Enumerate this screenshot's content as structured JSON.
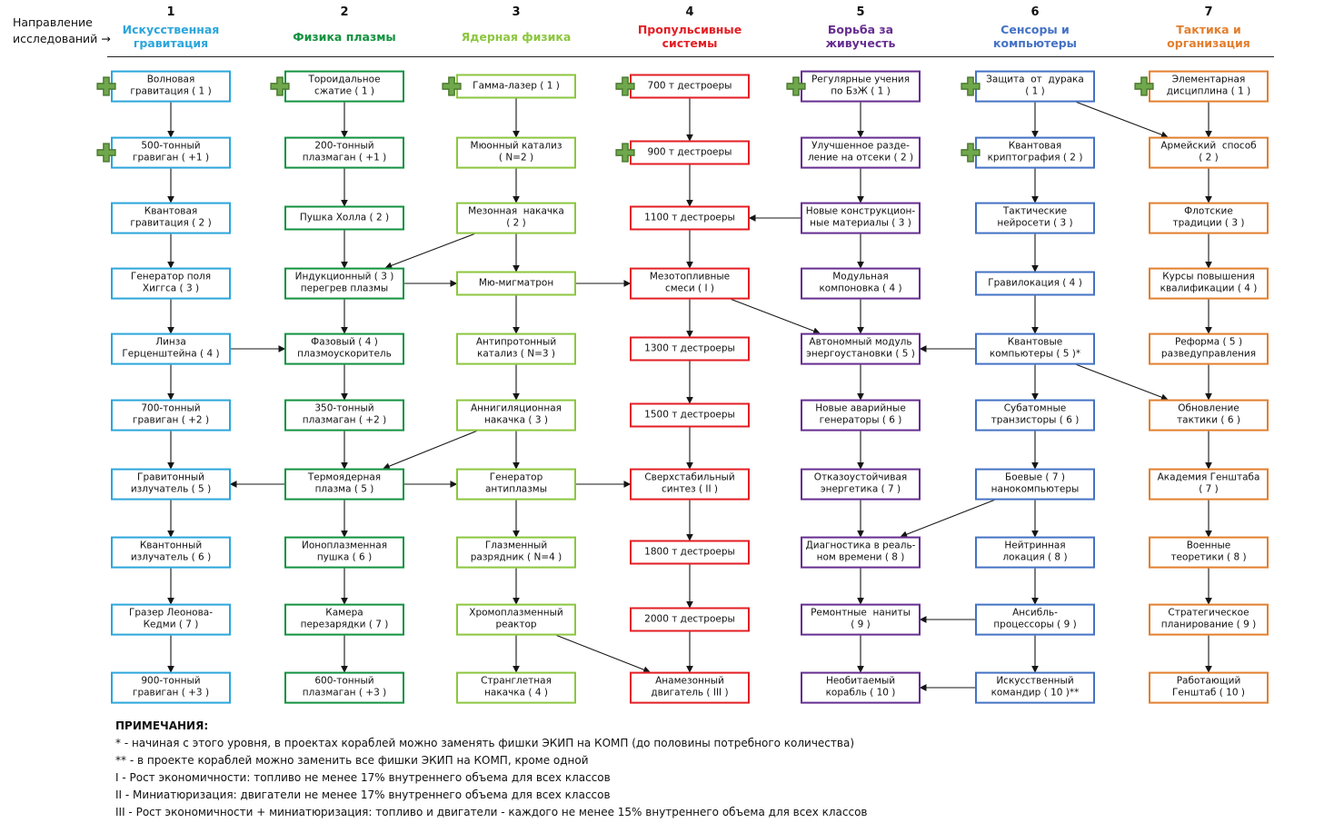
{
  "corner": {
    "line1": "Направление",
    "line2": "исследований →"
  },
  "columns": [
    {
      "number": "1",
      "title": "Искусственная\nгравитация",
      "color": "#2BA6DB",
      "items": [
        {
          "label": "Волновая\nгравитация ( 1 )",
          "plus": true
        },
        {
          "label": "500-тонный\nгравиган ( +1 )",
          "plus": true
        },
        {
          "label": "Квантовая\nгравитация ( 2 )"
        },
        {
          "label": "Генератор поля\nХиггса ( 3 )"
        },
        {
          "label": "Линза\nГерценштейна ( 4 )"
        },
        {
          "label": "700-тонный\nгравиган ( +2 )"
        },
        {
          "label": "Гравитонный\nизлучатель ( 5 )"
        },
        {
          "label": "Квантонный\nизлучатель ( 6 )"
        },
        {
          "label": "Гразер Леонова-\nКедми ( 7 )"
        },
        {
          "label": "900-тонный\nгравиган ( +3 )"
        }
      ]
    },
    {
      "number": "2",
      "title": "Физика плазмы",
      "color": "#12923F",
      "items": [
        {
          "label": "Тороидальное\nсжатие ( 1 )",
          "plus": true
        },
        {
          "label": "200-тонный\nплазмаган ( +1 )"
        },
        {
          "label": "Пушка Холла ( 2 )"
        },
        {
          "label": "Индукционный ( 3 )\nперегрев плазмы"
        },
        {
          "label": "Фазовый ( 4 )\nплазмоускоритель"
        },
        {
          "label": "350-тонный\nплазмаган ( +2 )"
        },
        {
          "label": "Термоядерная\nплазма ( 5 )"
        },
        {
          "label": "Ионоплазменная\nпушка ( 6 )"
        },
        {
          "label": "Камера\nперезарядки ( 7 )"
        },
        {
          "label": "600-тонный\nплазмаган ( +3 )"
        }
      ]
    },
    {
      "number": "3",
      "title": "Ядерная физика",
      "color": "#8CC63F",
      "items": [
        {
          "label": "Гамма-лазер ( 1 )",
          "plus": true
        },
        {
          "label": "Мюонный катализ\n( N=2 )"
        },
        {
          "label": "Мезонная  накачка\n( 2 )"
        },
        {
          "label": "Мю-мигматрон"
        },
        {
          "label": "Антипротонный\nкатализ ( N=3 )"
        },
        {
          "label": "Аннигиляционная\nнакачка ( 3 )"
        },
        {
          "label": "Генератор\nантиплазмы"
        },
        {
          "label": "Глазменный\nразрядник ( N=4 )"
        },
        {
          "label": "Хромоплазменный\nреактор"
        },
        {
          "label": "Странглетная\nнакачка ( 4 )"
        }
      ]
    },
    {
      "number": "4",
      "title": "Пропульсивные\nсистемы",
      "color": "#E31E24",
      "items": [
        {
          "label": "700 т дестроеры",
          "plus": true
        },
        {
          "label": "900 т дестроеры",
          "plus": true
        },
        {
          "label": "1100 т дестроеры"
        },
        {
          "label": "Мезотопливные\nсмеси ( I )"
        },
        {
          "label": "1300 т дестроеры"
        },
        {
          "label": "1500 т дестроеры"
        },
        {
          "label": "Сверхстабильный\nсинтез ( II )"
        },
        {
          "label": "1800 т дестроеры"
        },
        {
          "label": "2000 т дестроеры"
        },
        {
          "label": "Анамезонный\nдвигатель ( III )"
        }
      ]
    },
    {
      "number": "5",
      "title": "Борьба за\nживучесть",
      "color": "#662D91",
      "items": [
        {
          "label": "Регулярные учения\nпо БзЖ ( 1 )",
          "plus": true
        },
        {
          "label": "Улучшенное разде-\nление на отсеки ( 2 )"
        },
        {
          "label": "Новые конструкцион-\nные материалы ( 3 )"
        },
        {
          "label": "Модульная\nкомпоновка ( 4 )"
        },
        {
          "label": "Автономный модуль\nэнергоустановки ( 5 )"
        },
        {
          "label": "Новые аварийные\nгенераторы ( 6 )"
        },
        {
          "label": "Отказоустойчивая\nэнергетика ( 7 )"
        },
        {
          "label": "Диагностика в реаль-\nном времени ( 8 )"
        },
        {
          "label": "Ремонтные  наниты\n( 9 )"
        },
        {
          "label": "Необитаемый\nкорабль ( 10 )"
        }
      ]
    },
    {
      "number": "6",
      "title": "Сенсоры и\nкомпьютеры",
      "color": "#4472C4",
      "items": [
        {
          "label": "Защита  от  дурака\n( 1 )",
          "plus": true
        },
        {
          "label": "Квантовая\nкриптография ( 2 )",
          "plus": true
        },
        {
          "label": "Тактические\nнейросети ( 3 )"
        },
        {
          "label": "Гравилокация ( 4 )"
        },
        {
          "label": "Квантовые\nкомпьютеры ( 5 )*"
        },
        {
          "label": "Субатомные\nтранзисторы ( 6 )"
        },
        {
          "label": "Боевые ( 7 )\nнанокомпьютеры"
        },
        {
          "label": "Нейтринная\nлокация ( 8 )"
        },
        {
          "label": "Ансибль-\nпроцессоры ( 9 )"
        },
        {
          "label": "Искусственный\nкомандир ( 10 )**"
        }
      ]
    },
    {
      "number": "7",
      "title": "Тактика и\nорганизация",
      "color": "#E27F2E",
      "items": [
        {
          "label": "Элементарная\nдисциплина ( 1 )",
          "plus": true
        },
        {
          "label": "Армейский  способ\n( 2 )"
        },
        {
          "label": "Флотские\nтрадиции ( 3 )"
        },
        {
          "label": "Курсы повышения\nквалификации ( 4 )"
        },
        {
          "label": "Реформа ( 5 )\nразведуправления"
        },
        {
          "label": "Обновление\nтактики ( 6 )"
        },
        {
          "label": "Академия Генштаба\n( 7 )"
        },
        {
          "label": "Военные\nтеоретики ( 8 )"
        },
        {
          "label": "Стратегическое\nпланирование ( 9 )"
        },
        {
          "label": "Работающий\nГенштаб ( 10 )"
        }
      ]
    }
  ],
  "cross_links": [
    {
      "from": [
        3,
        3
      ],
      "to": [
        2,
        4
      ]
    },
    {
      "from": [
        2,
        4
      ],
      "to": [
        3,
        4
      ]
    },
    {
      "from": [
        3,
        4
      ],
      "to": [
        4,
        4
      ]
    },
    {
      "from": [
        4,
        4
      ],
      "to": [
        5,
        5
      ]
    },
    {
      "from": [
        1,
        5
      ],
      "to": [
        2,
        5
      ]
    },
    {
      "from": [
        3,
        6
      ],
      "to": [
        2,
        7
      ]
    },
    {
      "from": [
        2,
        7
      ],
      "to": [
        1,
        7
      ]
    },
    {
      "from": [
        2,
        7
      ],
      "to": [
        3,
        7
      ]
    },
    {
      "from": [
        3,
        7
      ],
      "to": [
        4,
        7
      ]
    },
    {
      "from": [
        3,
        9
      ],
      "to": [
        4,
        10
      ]
    },
    {
      "from": [
        5,
        3
      ],
      "to": [
        4,
        3
      ]
    },
    {
      "from": [
        6,
        5
      ],
      "to": [
        5,
        5
      ]
    },
    {
      "from": [
        6,
        5
      ],
      "to": [
        7,
        6
      ]
    },
    {
      "from": [
        6,
        7
      ],
      "to": [
        5,
        8
      ]
    },
    {
      "from": [
        6,
        9
      ],
      "to": [
        5,
        9
      ]
    },
    {
      "from": [
        6,
        10
      ],
      "to": [
        5,
        10
      ]
    },
    {
      "from": [
        6,
        1
      ],
      "to": [
        7,
        2
      ]
    }
  ],
  "icons": {
    "plus_fill": "#6FA84C",
    "plus_stroke": "#4C7A31"
  },
  "edge_color": "#151515",
  "notes": {
    "title": "ПРИМЕЧАНИЯ:",
    "lines": [
      "* - начиная с этого уровня, в проектах кораблей можно заменять фишки ЭКИП на КОМП (до половины потребного количества)",
      "** - в проекте кораблей можно заменить все фишки ЭКИП на КОМП, кроме одной",
      "I - Рост экономичности: топливо не менее 17% внутреннего объема для всех классов",
      "II - Миниатюризация: двигатели не менее 17% внутреннего объема для всех классов",
      "III - Рост экономичности + миниатюризация: топливо и двигатели - каждого не менее 15% внутреннего объема для всех классов"
    ]
  }
}
